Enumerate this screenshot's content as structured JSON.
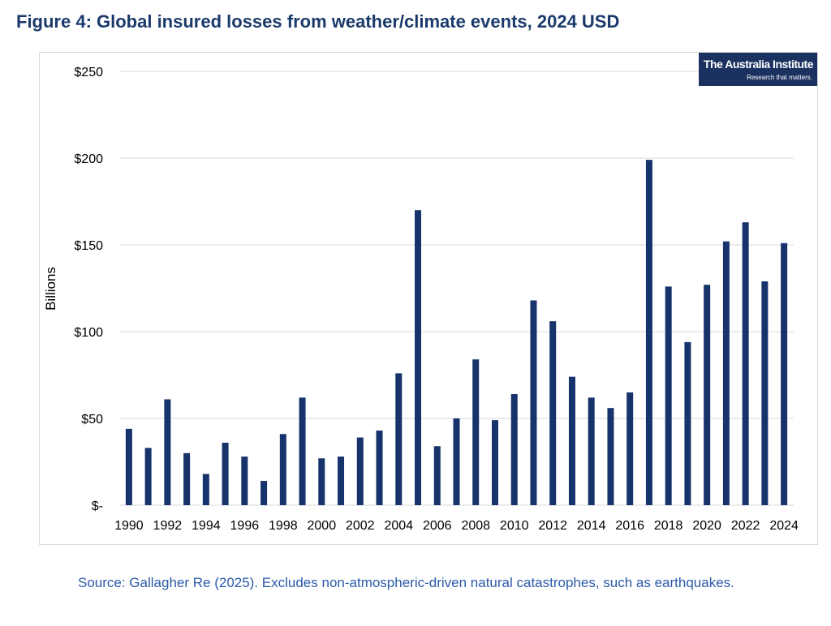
{
  "figure": {
    "title": "Figure 4: Global insured losses from weather/climate events, 2024 USD",
    "source": "Source: Gallagher Re (2025). Excludes non-atmospheric-driven natural catastrophes, such as earthquakes."
  },
  "logo": {
    "name": "The Australia Institute",
    "tagline": "Research that matters."
  },
  "colors": {
    "bar": "#17336b",
    "title": "#1b3a6b",
    "source": "#2b5aa8",
    "grid": "#d9d9d9"
  },
  "chart_data": {
    "type": "bar",
    "title": "",
    "xlabel": "",
    "ylabel": "Billions",
    "ylim": [
      0,
      250
    ],
    "yticks": [
      0,
      50,
      100,
      150,
      200,
      250
    ],
    "ytick_labels": [
      "$-",
      "$50",
      "$100",
      "$150",
      "$200",
      "$250"
    ],
    "grid": true,
    "categories": [
      "1990",
      "1991",
      "1992",
      "1993",
      "1994",
      "1995",
      "1996",
      "1997",
      "1998",
      "1999",
      "2000",
      "2001",
      "2002",
      "2003",
      "2004",
      "2005",
      "2006",
      "2007",
      "2008",
      "2009",
      "2010",
      "2011",
      "2012",
      "2013",
      "2014",
      "2015",
      "2016",
      "2017",
      "2018",
      "2019",
      "2020",
      "2021",
      "2022",
      "2023",
      "2024"
    ],
    "xtick_labels_shown": [
      "1990",
      "1992",
      "1994",
      "1996",
      "1998",
      "2000",
      "2002",
      "2004",
      "2006",
      "2008",
      "2010",
      "2012",
      "2014",
      "2016",
      "2018",
      "2020",
      "2022",
      "2024"
    ],
    "values": [
      44,
      33,
      61,
      30,
      18,
      36,
      28,
      14,
      41,
      62,
      27,
      28,
      39,
      43,
      76,
      170,
      34,
      50,
      84,
      49,
      64,
      118,
      106,
      74,
      62,
      56,
      65,
      199,
      126,
      94,
      127,
      152,
      163,
      129,
      151
    ]
  }
}
